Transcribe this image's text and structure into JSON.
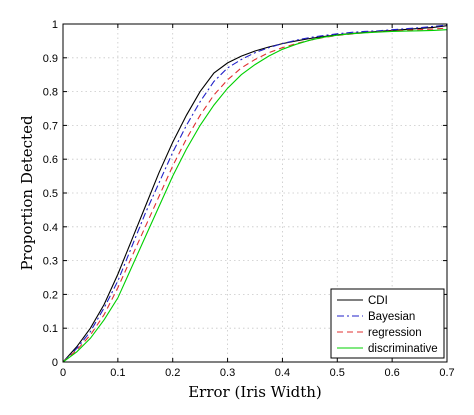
{
  "chart_data": {
    "type": "line",
    "xlabel": "Error (Iris Width)",
    "ylabel": "Proportion Detected",
    "xlim": [
      0,
      0.7
    ],
    "ylim": [
      0,
      1
    ],
    "x_ticks": [
      "0",
      "0.1",
      "0.2",
      "0.3",
      "0.4",
      "0.5",
      "0.6",
      "0.7"
    ],
    "y_ticks": [
      "0",
      "0.1",
      "0.2",
      "0.3",
      "0.4",
      "0.5",
      "0.6",
      "0.7",
      "0.8",
      "0.9",
      "1"
    ],
    "grid": true,
    "legend_position": "bottom-right",
    "x": [
      0,
      0.025,
      0.05,
      0.075,
      0.1,
      0.125,
      0.15,
      0.175,
      0.2,
      0.225,
      0.25,
      0.275,
      0.3,
      0.325,
      0.35,
      0.375,
      0.4,
      0.425,
      0.45,
      0.475,
      0.5,
      0.525,
      0.55,
      0.575,
      0.6,
      0.625,
      0.65,
      0.675,
      0.7
    ],
    "series": [
      {
        "name": "CDI",
        "color": "#000000",
        "dash": "solid",
        "values": [
          0.0,
          0.045,
          0.1,
          0.17,
          0.26,
          0.36,
          0.46,
          0.56,
          0.65,
          0.73,
          0.8,
          0.855,
          0.885,
          0.905,
          0.92,
          0.932,
          0.942,
          0.95,
          0.957,
          0.963,
          0.968,
          0.972,
          0.975,
          0.978,
          0.981,
          0.984,
          0.987,
          0.99,
          0.995
        ]
      },
      {
        "name": "Bayesian",
        "color": "#2020c8",
        "dash": "dashdot",
        "values": [
          0.0,
          0.04,
          0.09,
          0.16,
          0.24,
          0.34,
          0.44,
          0.53,
          0.62,
          0.7,
          0.77,
          0.83,
          0.87,
          0.895,
          0.915,
          0.93,
          0.942,
          0.952,
          0.96,
          0.966,
          0.971,
          0.975,
          0.978,
          0.98,
          0.983,
          0.986,
          0.989,
          0.993,
          0.997
        ]
      },
      {
        "name": "regression",
        "color": "#e03030",
        "dash": "dashed",
        "values": [
          0.0,
          0.035,
          0.08,
          0.14,
          0.22,
          0.31,
          0.4,
          0.49,
          0.58,
          0.66,
          0.73,
          0.79,
          0.835,
          0.87,
          0.895,
          0.915,
          0.93,
          0.942,
          0.952,
          0.96,
          0.966,
          0.97,
          0.974,
          0.977,
          0.979,
          0.981,
          0.983,
          0.985,
          0.988
        ]
      },
      {
        "name": "discriminative",
        "color": "#00d000",
        "dash": "solid",
        "values": [
          0.0,
          0.03,
          0.07,
          0.125,
          0.19,
          0.28,
          0.37,
          0.46,
          0.55,
          0.63,
          0.7,
          0.76,
          0.81,
          0.85,
          0.88,
          0.905,
          0.925,
          0.94,
          0.952,
          0.961,
          0.967,
          0.971,
          0.974,
          0.976,
          0.978,
          0.979,
          0.98,
          0.981,
          0.983
        ]
      }
    ]
  }
}
